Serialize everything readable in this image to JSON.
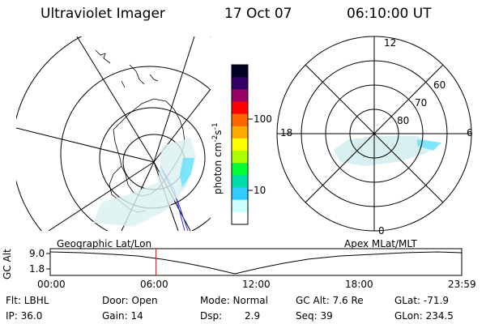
{
  "header": {
    "instrument": "Ultraviolet Imager",
    "date": "17 Oct 07",
    "time": "06:10:00 UT"
  },
  "colorbar": {
    "label": "photon cm",
    "label_sup": "-2",
    "label_s": "s",
    "label_s_sup": "-1",
    "ticks": [
      "100",
      "10"
    ],
    "colors": [
      "#000022",
      "#330066",
      "#990066",
      "#ff0000",
      "#ff6600",
      "#ffaa00",
      "#ffff00",
      "#aaff00",
      "#00ff33",
      "#00ddaa",
      "#33ccff",
      "#ccffff",
      "#ffffff"
    ]
  },
  "polar_plot": {
    "labels": {
      "top": "12",
      "left": "18",
      "right": "6",
      "bottom": "0"
    },
    "lat_labels": [
      "60",
      "70",
      "80"
    ]
  },
  "timeline": {
    "ylabel": "GC Alt",
    "yticks": [
      "9.0",
      "1.8"
    ],
    "left_title": "Geographic Lat/Lon",
    "right_title": "Apex MLat/MLT",
    "xticks": [
      "00:00",
      "06:00",
      "12:00",
      "18:00",
      "23:59"
    ],
    "marker_time_hours": 6.17
  },
  "info": {
    "filter": "Flt: LBHL",
    "ip": "IP: 36.0",
    "door": "Door: Open",
    "gain": "Gain: 14",
    "mode": "Mode: Normal",
    "dsp_label": "Dsp:",
    "dsp_value": "2.9",
    "gc_alt": "GC Alt: 7.6 Re",
    "seq": "Seq: 39",
    "glat": "GLat: -71.9",
    "glon": "GLon: 234.5"
  }
}
